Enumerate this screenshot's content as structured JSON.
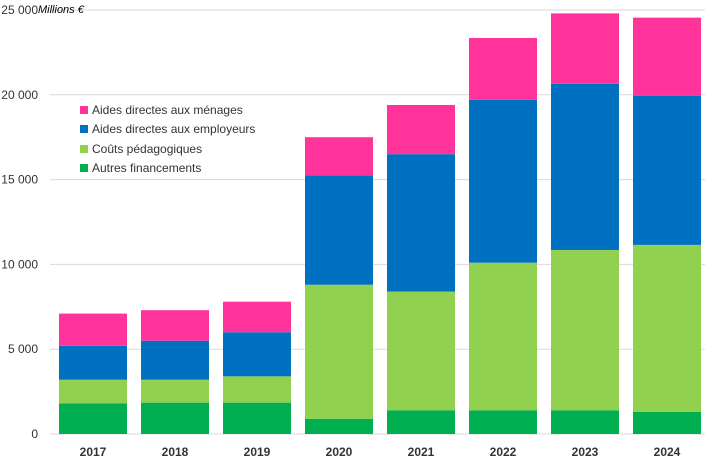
{
  "chart_data": {
    "type": "bar",
    "stacked": true,
    "unit_label": "Millions €",
    "categories": [
      "2017",
      "2018",
      "2019",
      "2020",
      "2021",
      "2022",
      "2023",
      "2024"
    ],
    "ylim": [
      0,
      25000
    ],
    "yticks": [
      0,
      5000,
      10000,
      15000,
      20000,
      25000
    ],
    "ytick_labels": [
      "0",
      "5 000",
      "10 000",
      "15 000",
      "20 000",
      "25 000"
    ],
    "grid": true,
    "legend_position": "top-left",
    "series": [
      {
        "name": "Autres financements",
        "color": "#00b050",
        "values": [
          1800,
          1850,
          1850,
          900,
          1400,
          1400,
          1400,
          1300
        ]
      },
      {
        "name": "Coûts pédagogiques",
        "color": "#92d050",
        "values": [
          1400,
          1350,
          1550,
          7900,
          7000,
          8700,
          9450,
          9850
        ]
      },
      {
        "name": "Aides directes aux employeurs",
        "color": "#0070c0",
        "values": [
          2000,
          2300,
          2600,
          6450,
          8100,
          9600,
          9800,
          8800
        ]
      },
      {
        "name": "Aides directes aux ménages",
        "color": "#ff3399",
        "values": [
          1900,
          1800,
          1800,
          2250,
          2900,
          3650,
          4150,
          4600
        ]
      }
    ],
    "legend_order": [
      "Aides directes aux ménages",
      "Aides directes aux employeurs",
      "Coûts pédagogiques",
      "Autres financements"
    ]
  }
}
